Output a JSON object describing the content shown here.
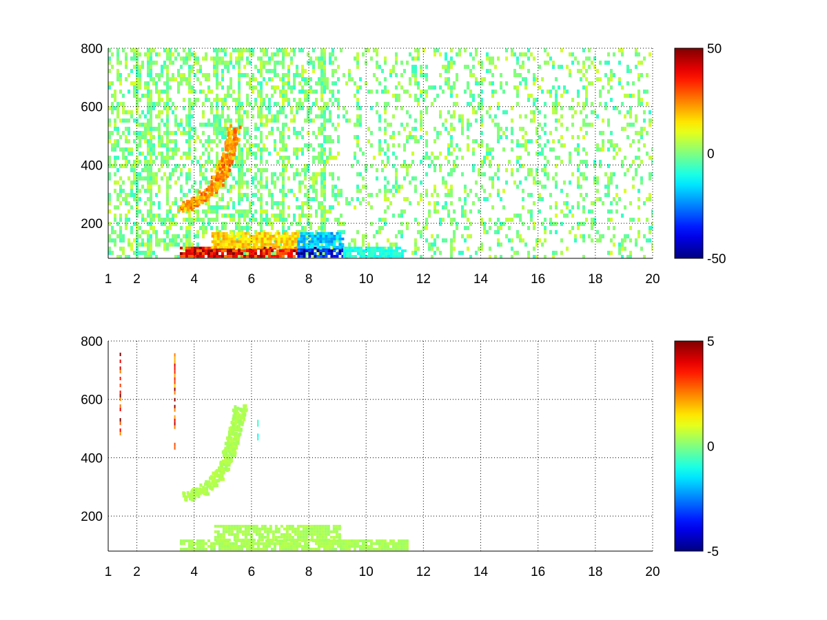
{
  "chart_data": [
    {
      "type": "heatmap",
      "title": "",
      "xlabel": "",
      "ylabel": "",
      "xlim": [
        1,
        20
      ],
      "ylim": [
        80,
        800
      ],
      "x_ticks": [
        1,
        2,
        4,
        6,
        8,
        10,
        12,
        14,
        16,
        18,
        20
      ],
      "y_ticks": [
        200,
        400,
        600,
        800
      ],
      "grid": true,
      "colormap": "jet",
      "colorbar": {
        "min": -50,
        "max": 50,
        "ticks": [
          50,
          0,
          -50
        ]
      },
      "features": [
        {
          "name": "scattered noise",
          "x_range": [
            1,
            20
          ],
          "y_range": [
            80,
            800
          ],
          "typical_value": 5,
          "density": 0.28
        },
        {
          "name": "curved ridge",
          "points": [
            [
              3.6,
              260
            ],
            [
              4.1,
              285
            ],
            [
              4.6,
              320
            ],
            [
              4.9,
              370
            ],
            [
              5.1,
              420
            ],
            [
              5.25,
              470
            ],
            [
              5.35,
              530
            ]
          ],
          "value": 25
        },
        {
          "name": "low band positive",
          "x_range": [
            3.5,
            7.6
          ],
          "y_range": [
            85,
            120
          ],
          "value": 45
        },
        {
          "name": "low band negative",
          "x_range": [
            7.6,
            9.3
          ],
          "y_range": [
            85,
            120
          ],
          "value": -45
        },
        {
          "name": "upper band positive",
          "x_range": [
            4.6,
            7.6
          ],
          "y_range": [
            120,
            170
          ],
          "value": 20
        },
        {
          "name": "upper band negative",
          "x_range": [
            7.6,
            9.2
          ],
          "y_range": [
            120,
            170
          ],
          "value": -22
        },
        {
          "name": "tail band",
          "x_range": [
            9.2,
            11.4
          ],
          "y_range": [
            85,
            120
          ],
          "value": -12
        }
      ]
    },
    {
      "type": "heatmap",
      "title": "",
      "xlabel": "",
      "ylabel": "",
      "xlim": [
        1,
        20
      ],
      "ylim": [
        80,
        800
      ],
      "x_ticks": [
        1,
        2,
        4,
        6,
        8,
        10,
        12,
        14,
        16,
        18,
        20
      ],
      "y_ticks": [
        200,
        400,
        600,
        800
      ],
      "grid": true,
      "colormap": "jet",
      "colorbar": {
        "min": -5,
        "max": 5,
        "ticks": [
          5,
          0,
          -5
        ]
      },
      "features": [
        {
          "name": "curved ridge",
          "points": [
            [
              3.7,
              270
            ],
            [
              4.2,
              290
            ],
            [
              4.7,
              330
            ],
            [
              5.0,
              380
            ],
            [
              5.2,
              430
            ],
            [
              5.35,
              480
            ],
            [
              5.45,
              530
            ],
            [
              5.6,
              580
            ]
          ],
          "value": 0.5
        },
        {
          "name": "low band",
          "x_range": [
            3.5,
            11.4
          ],
          "y_range": [
            85,
            120
          ],
          "value": 0.5
        },
        {
          "name": "upper band",
          "x_range": [
            4.7,
            9.1
          ],
          "y_range": [
            120,
            170
          ],
          "value": 0.5
        },
        {
          "name": "streak",
          "x": 1.4,
          "y_range": [
            480,
            760
          ],
          "value": 5
        },
        {
          "name": "streak",
          "x": 3.3,
          "y_range": [
            430,
            770
          ],
          "value": 4
        },
        {
          "name": "streak",
          "x": 6.2,
          "y_range": [
            460,
            530
          ],
          "value": -1.5
        }
      ]
    }
  ]
}
